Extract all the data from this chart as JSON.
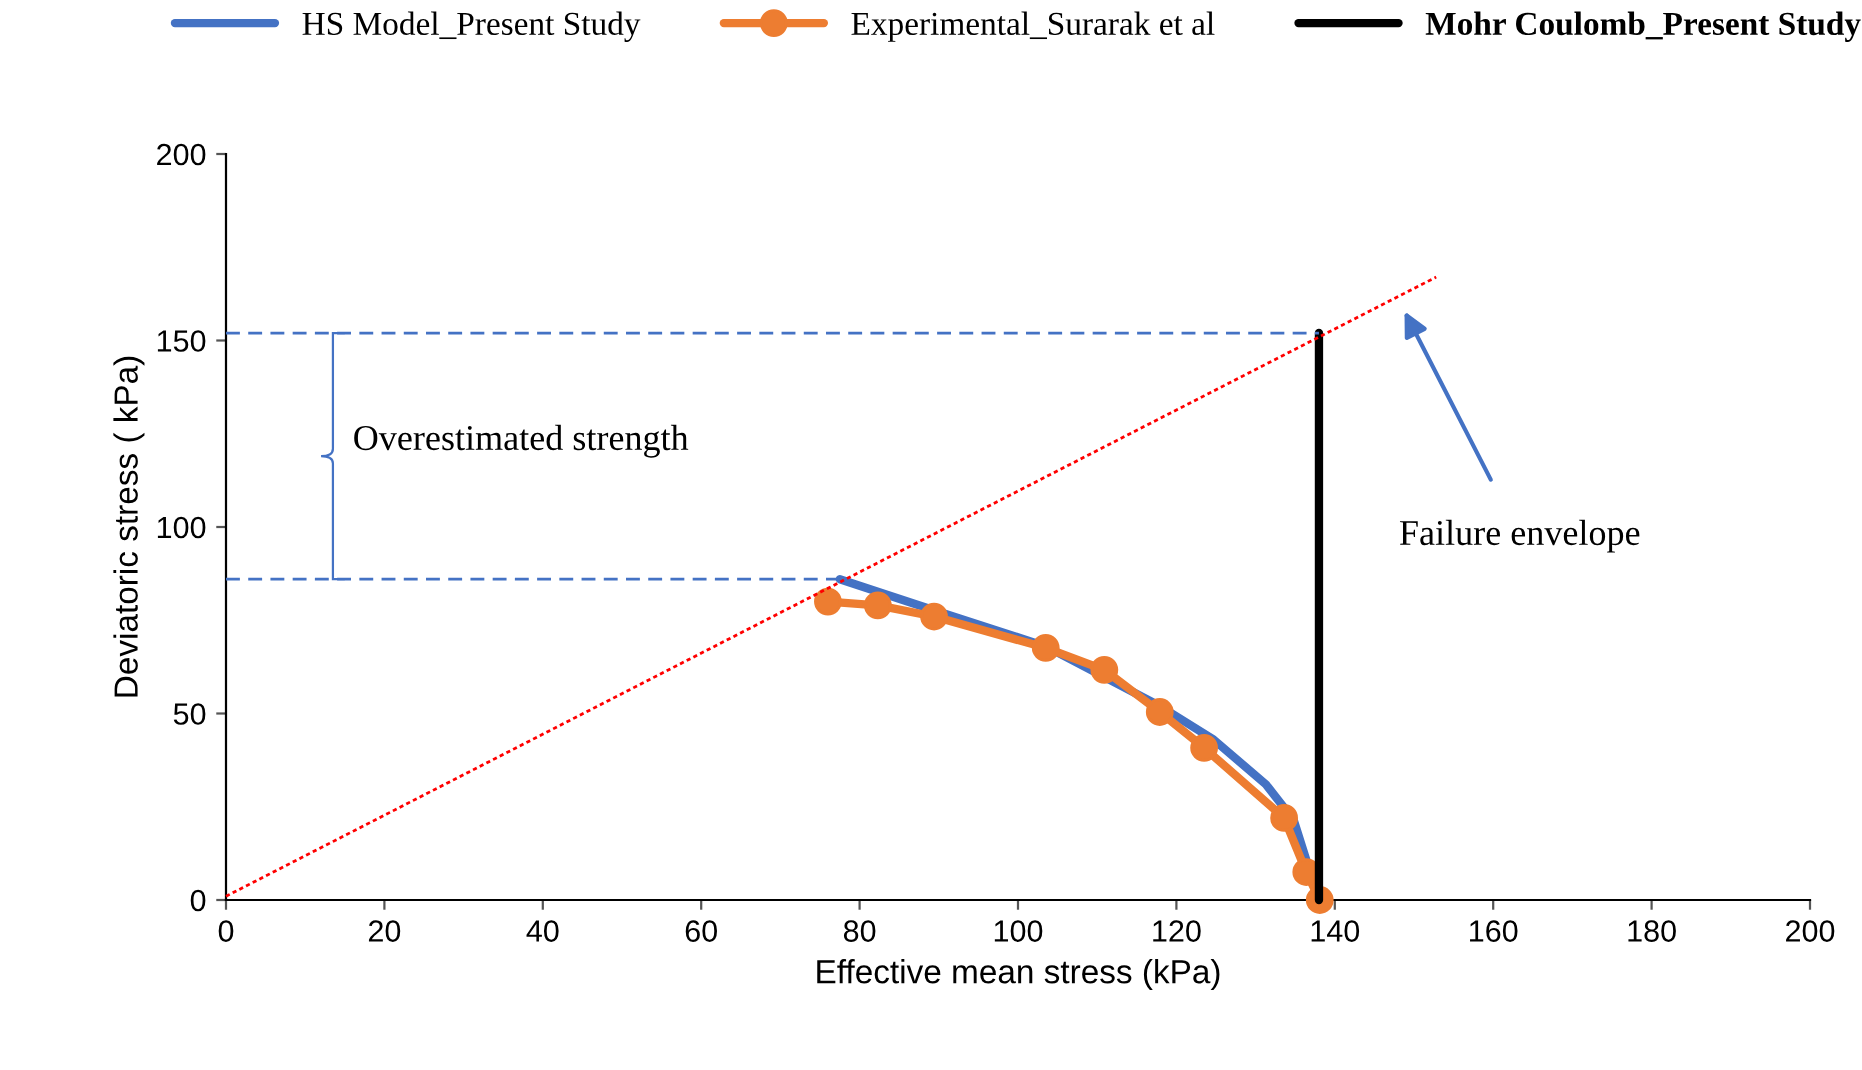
{
  "chart_data": {
    "type": "line",
    "xlabel": "Effective mean stress (kPa)",
    "ylabel": "Deviatoric stress ( kPa)",
    "xlim": [
      0,
      200
    ],
    "ylim": [
      0,
      200
    ],
    "xticks": [
      0,
      20,
      40,
      60,
      80,
      100,
      120,
      140,
      160,
      180,
      200
    ],
    "yticks": [
      0,
      50,
      100,
      150,
      200
    ],
    "grid": false,
    "legend": "top",
    "series": [
      {
        "name": "HS Model_Present Study",
        "color": "#4472c4",
        "marker": "none",
        "x": [
          77.5,
          89.4,
          103.5,
          117.9,
          124.7,
          131.3,
          134.8,
          137.4,
          137.9
        ],
        "values": [
          86,
          77.7,
          68,
          52,
          43,
          31,
          21.5,
          4,
          0
        ]
      },
      {
        "name": "Experimental_Surarak et al",
        "color": "#ed7d31",
        "marker": "circle",
        "x": [
          76,
          82.3,
          89.4,
          103.5,
          110.9,
          117.9,
          123.5,
          133.6,
          136.4,
          138.1
        ],
        "values": [
          80,
          79,
          76,
          67.6,
          61.7,
          50.4,
          40.8,
          22,
          7.5,
          0
        ]
      },
      {
        "name": "Mohr Coulomb_Present Study",
        "color": "#000000",
        "marker": "none",
        "x": [
          138,
          138
        ],
        "values": [
          0,
          152
        ]
      },
      {
        "color": "#ff0000",
        "marker": "none",
        "line_style": "dotted",
        "x": [
          0,
          152.8
        ],
        "values": [
          1,
          167
        ]
      },
      {
        "color": "#4472c4",
        "marker": "none",
        "line_style": "dashed",
        "x": [
          0,
          138
        ],
        "values": [
          152,
          152
        ]
      },
      {
        "color": "#4472c4",
        "marker": "none",
        "line_style": "dashed",
        "x": [
          0,
          77.5
        ],
        "values": [
          86,
          86
        ]
      }
    ],
    "annotations": [
      "Overestimated strength",
      "Failure envelope"
    ]
  }
}
